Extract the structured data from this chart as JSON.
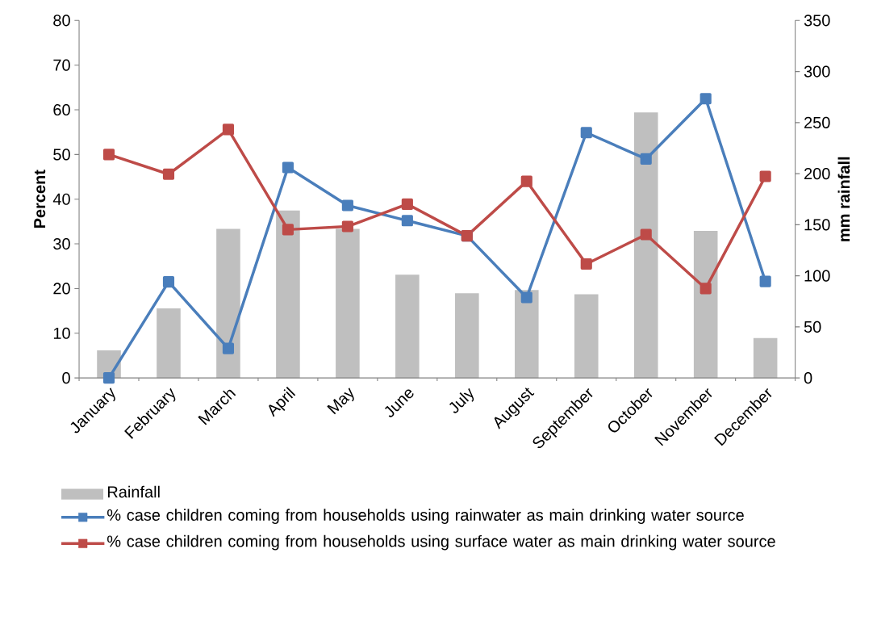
{
  "chart_data": {
    "type": "line",
    "ylabel": "Percent",
    "y2label": "mm rainfall",
    "categories": [
      "January",
      "February",
      "March",
      "April",
      "May",
      "June",
      "July",
      "August",
      "September",
      "October",
      "November",
      "December"
    ],
    "series": [
      {
        "name": "Rainfall",
        "type": "bar",
        "axis": "y2",
        "color": "#bfbfbf",
        "values": [
          27,
          68,
          146,
          164,
          146,
          101,
          83,
          86,
          82,
          260,
          144,
          39
        ]
      },
      {
        "name": "% case children coming from households using rainwater as main drinking water source",
        "color": "#4a7ebb",
        "values": [
          0,
          21.5,
          6.6,
          47.1,
          38.6,
          35.2,
          31.8,
          18.0,
          54.9,
          49.0,
          62.5,
          21.6
        ]
      },
      {
        "name": "% case children coming from households using surface water as main drinking water source",
        "color": "#be4b48",
        "values": [
          50,
          45.6,
          55.6,
          33.2,
          33.9,
          38.9,
          31.8,
          44.0,
          25.5,
          32.1,
          20.0,
          45.1
        ]
      }
    ],
    "ylim": [
      0,
      80
    ],
    "yticks": [
      0,
      10,
      20,
      30,
      40,
      50,
      60,
      70,
      80
    ],
    "y2lim": [
      0,
      350
    ],
    "y2ticks": [
      0,
      50,
      100,
      150,
      200,
      250,
      300,
      350
    ],
    "marker": "square",
    "line_style": "solid",
    "legend": "bottom"
  }
}
